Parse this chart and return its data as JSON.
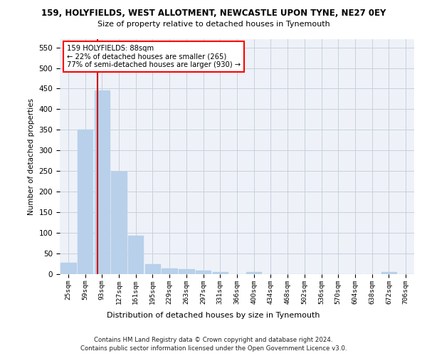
{
  "title": "159, HOLYFIELDS, WEST ALLOTMENT, NEWCASTLE UPON TYNE, NE27 0EY",
  "subtitle": "Size of property relative to detached houses in Tynemouth",
  "xlabel": "Distribution of detached houses by size in Tynemouth",
  "ylabel": "Number of detached properties",
  "bar_labels": [
    "25sqm",
    "59sqm",
    "93sqm",
    "127sqm",
    "161sqm",
    "195sqm",
    "229sqm",
    "263sqm",
    "297sqm",
    "331sqm",
    "366sqm",
    "400sqm",
    "434sqm",
    "468sqm",
    "502sqm",
    "536sqm",
    "570sqm",
    "604sqm",
    "638sqm",
    "672sqm",
    "706sqm"
  ],
  "bar_values": [
    28,
    350,
    445,
    248,
    93,
    24,
    14,
    12,
    8,
    6,
    0,
    6,
    0,
    0,
    0,
    0,
    0,
    0,
    0,
    6,
    0
  ],
  "bar_color": "#b8d0ea",
  "vline_color": "#cc0000",
  "vline_pos": 1.72,
  "annotation_text": "159 HOLYFIELDS: 88sqm\n← 22% of detached houses are smaller (265)\n77% of semi-detached houses are larger (930) →",
  "ylim": [
    0,
    570
  ],
  "yticks": [
    0,
    50,
    100,
    150,
    200,
    250,
    300,
    350,
    400,
    450,
    500,
    550
  ],
  "footer_line1": "Contains HM Land Registry data © Crown copyright and database right 2024.",
  "footer_line2": "Contains public sector information licensed under the Open Government Licence v3.0.",
  "bg_color": "#eef2f8",
  "grid_color": "#c8d0dc"
}
